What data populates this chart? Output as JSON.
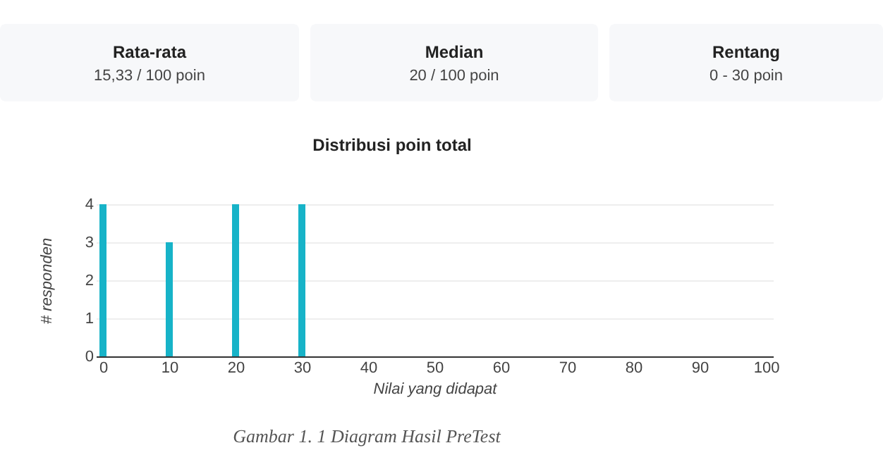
{
  "chart_data": {
    "type": "bar",
    "title": "Distribusi poin total",
    "xlabel": "Nilai yang didapat",
    "ylabel": "# responden",
    "x": [
      0,
      10,
      20,
      30
    ],
    "values": [
      4,
      3,
      4,
      4
    ],
    "color": "#17b3c8",
    "xlim": [
      0,
      100
    ],
    "xticks": [
      0,
      10,
      20,
      30,
      40,
      50,
      60,
      70,
      80,
      90,
      100
    ],
    "ylim": [
      0,
      4
    ],
    "yticks": [
      0,
      1,
      2,
      3,
      4
    ],
    "grid": "y",
    "annotations": [
      "Rata-rata",
      "15,33 / 100 poin",
      "Median",
      "20 / 100 poin",
      "Rentang",
      "0 - 30 poin",
      "Gambar 1.  1 Diagram Hasil PreTest"
    ]
  }
}
